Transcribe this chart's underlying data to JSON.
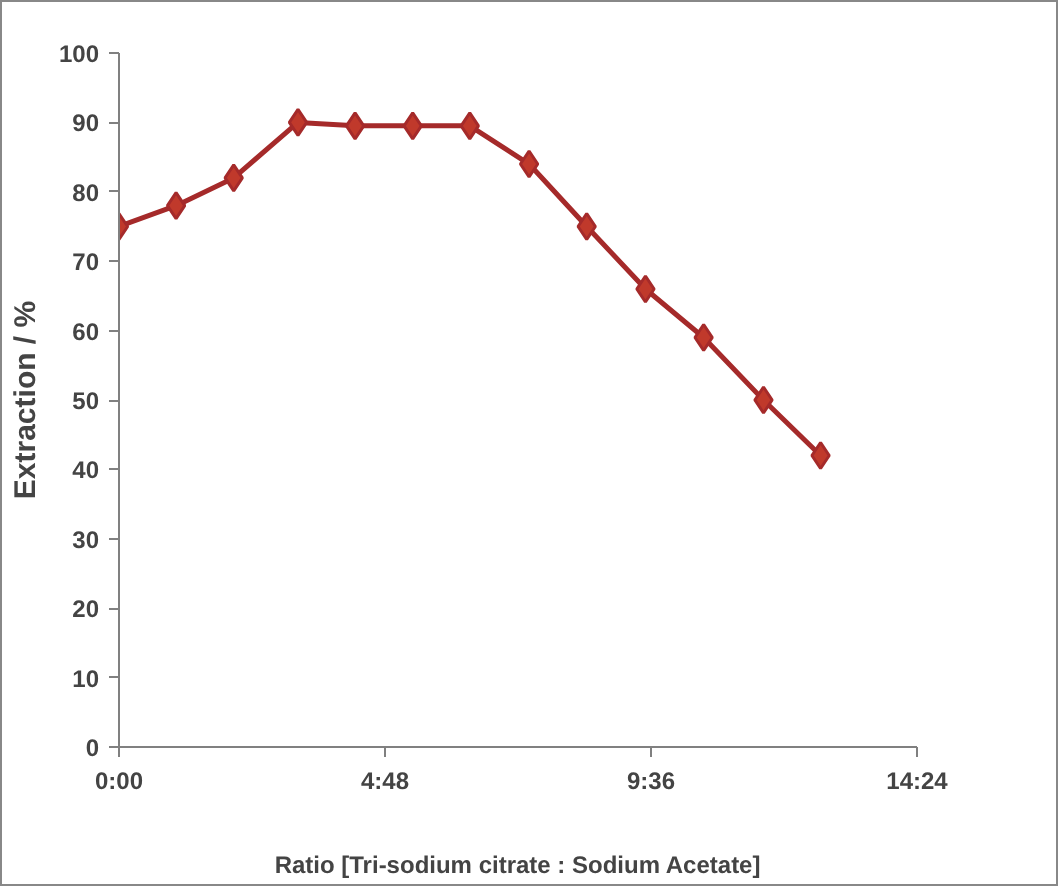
{
  "chart_data": {
    "type": "line",
    "xlabel": "Ratio [Tri-sodium citrate : Sodium Acetate]",
    "ylabel": "Extraction / %",
    "x": [
      0,
      1.03,
      2.07,
      3.23,
      4.26,
      5.3,
      6.33,
      7.4,
      8.44,
      9.5,
      10.55,
      11.63,
      12.66
    ],
    "series": [
      {
        "color": "#a52a2a",
        "values": [
          75,
          78,
          82,
          90,
          89.5,
          89.5,
          89.5,
          84,
          75,
          66,
          59,
          50,
          42
        ]
      }
    ],
    "xlim": [
      0,
      14.4
    ],
    "xticks": [
      {
        "value": 0,
        "label": "0:00"
      },
      {
        "value": 4.8,
        "label": "4:48"
      },
      {
        "value": 9.6,
        "label": "9:36"
      },
      {
        "value": 14.4,
        "label": "14:24"
      }
    ],
    "ylim": [
      0,
      100
    ],
    "yticks": [
      0,
      10,
      20,
      30,
      40,
      50,
      60,
      70,
      80,
      90,
      100
    ],
    "marker": "diamond",
    "line_style": "solid",
    "grid": false
  }
}
